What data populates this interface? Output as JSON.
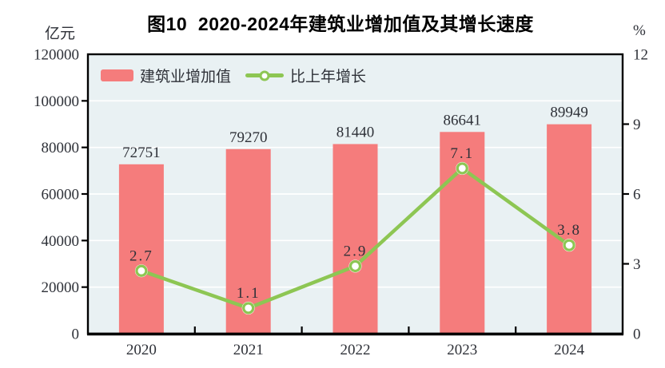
{
  "chart_data": {
    "type": "bar",
    "title": "图10  2020-2024年建筑业增加值及其增长速度",
    "categories": [
      "2020",
      "2021",
      "2022",
      "2023",
      "2024"
    ],
    "series": [
      {
        "name": "建筑业增加值",
        "kind": "bar",
        "axis": "left",
        "values": [
          72751,
          79270,
          81440,
          86641,
          89949
        ]
      },
      {
        "name": "比上年增长",
        "kind": "line",
        "axis": "right",
        "values": [
          2.7,
          1.1,
          2.9,
          7.1,
          3.8
        ]
      }
    ],
    "left_axis": {
      "unit": "亿元",
      "min": 0,
      "max": 120000,
      "ticks": [
        0,
        20000,
        40000,
        60000,
        80000,
        100000,
        120000
      ]
    },
    "right_axis": {
      "unit": "%",
      "min": 0,
      "max": 12,
      "ticks": [
        0,
        3,
        6,
        9,
        12
      ]
    },
    "grid": "horizontal-white",
    "legend_position": "top-left-inside",
    "colors": {
      "bar": "#F57C7C",
      "line": "#8DC653",
      "marker_fill": "#FFFFFF",
      "plot_bg": "#E9F1F3",
      "grid": "#FFFFFF",
      "frame": "#000000",
      "text": "#2E3138",
      "title": "#000000"
    }
  }
}
